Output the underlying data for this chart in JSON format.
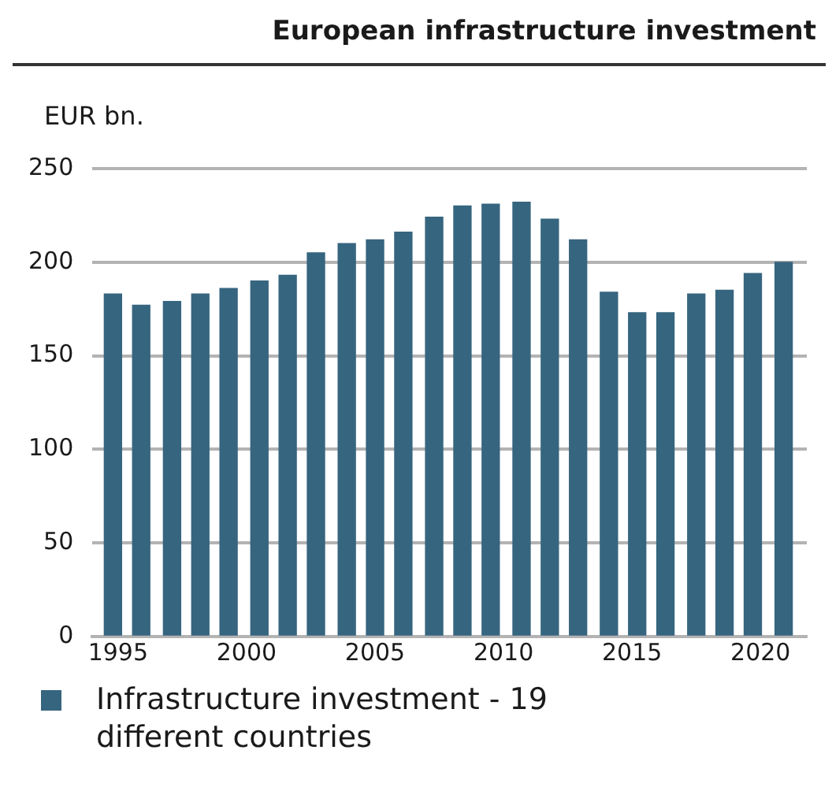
{
  "chart_data": {
    "type": "bar",
    "title": "European infrastructure investment",
    "ylabel": "EUR bn.",
    "x": [
      1994.8,
      1995.9,
      1997.1,
      1998.2,
      1999.3,
      2000.5,
      2001.6,
      2002.7,
      2003.9,
      2005.0,
      2006.1,
      2007.3,
      2008.4,
      2009.5,
      2010.7,
      2011.8,
      2012.9,
      2014.1,
      2015.2,
      2016.3,
      2017.5,
      2018.6,
      2019.7,
      2020.9
    ],
    "series": [
      {
        "name": "Infrastructure investment - 19 different countries",
        "color": "#36657f",
        "values": [
          183,
          177,
          179,
          183,
          186,
          190,
          193,
          205,
          210,
          212,
          216,
          224,
          230,
          231,
          232,
          223,
          212,
          184,
          173,
          173,
          183,
          185,
          194,
          200
        ]
      }
    ],
    "xlim": [
      1994,
      2021.8
    ],
    "xticks": [
      1995,
      2000,
      2005,
      2010,
      2015,
      2020
    ],
    "ylim": [
      0,
      250
    ],
    "yticks": [
      0,
      50,
      100,
      150,
      200,
      250
    ],
    "grid": "y",
    "legend": "bottom"
  }
}
